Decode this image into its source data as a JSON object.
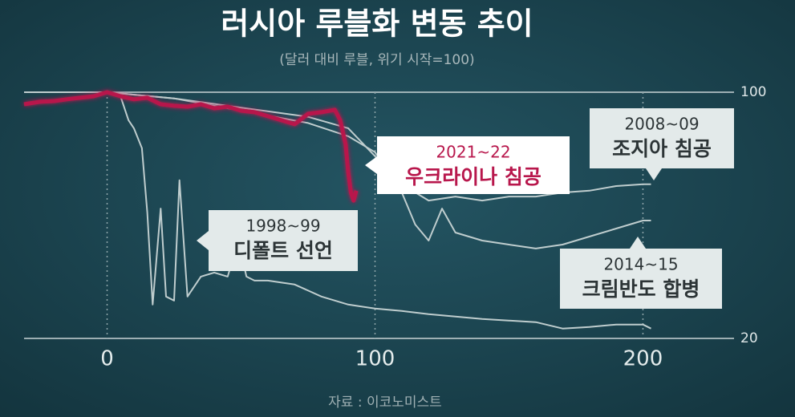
{
  "chart_data": {
    "type": "line",
    "title": "러시아 루블화 변동 추이",
    "subtitle": "(달러 대비 루블, 위기 시작=100)",
    "source": "자료 : 이코노미스트",
    "xlim": [
      -31,
      234
    ],
    "xticks": [
      0,
      100,
      200
    ],
    "ylim": [
      20,
      100
    ],
    "yticks": [
      100,
      20
    ],
    "series": [
      {
        "period": "2021~22",
        "name": "우크라이나 침공",
        "color": "#b8174c",
        "x": [
          -31,
          -25,
          -20,
          -15,
          -10,
          -5,
          0,
          5,
          10,
          15,
          20,
          25,
          30,
          35,
          40,
          45,
          50,
          55,
          60,
          65,
          70,
          75,
          80,
          85,
          87,
          89,
          90,
          91,
          92,
          93
        ],
        "values": [
          96.1,
          96.9,
          97.1,
          97.7,
          98.2,
          98.7,
          100,
          98.7,
          97.7,
          98.2,
          96.1,
          95.6,
          95.3,
          96.1,
          94.8,
          95.3,
          94.0,
          93.5,
          92.2,
          90.9,
          89.6,
          93.0,
          93.5,
          94.3,
          90.9,
          83.1,
          74.0,
          67.4,
          64.8,
          68.0
        ]
      },
      {
        "period": "1998~99",
        "name": "디폴트 선언",
        "color": "#bfcdce",
        "x": [
          -31,
          -10,
          0,
          5,
          8,
          10,
          13,
          15,
          17,
          20,
          22,
          25,
          27,
          30,
          35,
          40,
          45,
          49,
          52,
          55,
          60,
          70,
          80,
          90,
          100,
          110,
          120,
          140,
          160,
          170,
          180,
          190,
          200,
          203
        ],
        "values": [
          100,
          100,
          100,
          98.7,
          90.9,
          88.3,
          81.8,
          60.9,
          31.0,
          62.2,
          33.6,
          32.3,
          71.4,
          33.6,
          40.1,
          41.4,
          40.1,
          51.8,
          40.1,
          38.8,
          38.8,
          37.5,
          33.6,
          31.0,
          29.7,
          28.9,
          27.9,
          26.3,
          25.3,
          23.2,
          23.7,
          24.5,
          24.5,
          23.2
        ]
      },
      {
        "period": "2008~09",
        "name": "조지아 침공",
        "color": "#bfcdce",
        "x": [
          -31,
          0,
          25,
          50,
          75,
          90,
          100,
          110,
          120,
          130,
          140,
          150,
          160,
          170,
          180,
          190,
          200,
          203
        ],
        "values": [
          100,
          100,
          98,
          95,
          92,
          88.3,
          79.2,
          70.1,
          64.8,
          66.1,
          64.8,
          66.1,
          66.1,
          67.4,
          68.0,
          69.5,
          70.1,
          70.1
        ]
      },
      {
        "period": "2014~15",
        "name": "크림반도 합병",
        "color": "#bfcdce",
        "x": [
          -31,
          0,
          25,
          50,
          75,
          90,
          100,
          110,
          115,
          120,
          125,
          130,
          140,
          150,
          160,
          170,
          180,
          190,
          200,
          203
        ],
        "values": [
          100,
          100,
          98,
          94,
          90,
          85.7,
          80.5,
          67.4,
          57.0,
          51.8,
          62.2,
          54.4,
          51.8,
          50.5,
          49.2,
          50.5,
          53.1,
          55.7,
          58.3,
          58.3
        ]
      }
    ]
  }
}
